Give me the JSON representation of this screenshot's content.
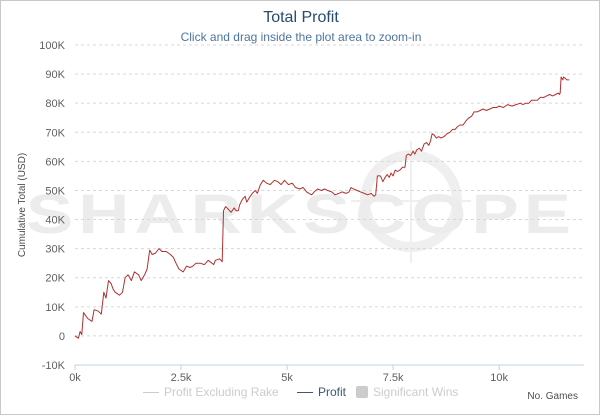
{
  "chart_data": {
    "type": "line",
    "title": "Total Profit",
    "subtitle": "Click and drag inside the plot area to zoom-in",
    "xlabel": "No. Games",
    "ylabel": "Cumulative Total (USD)",
    "xlim": [
      0,
      12000
    ],
    "ylim": [
      -10000,
      100000
    ],
    "x_ticks": [
      0,
      2500,
      5000,
      7500,
      10000
    ],
    "x_tick_labels": [
      "0k",
      "2.5k",
      "5k",
      "7.5k",
      "10k"
    ],
    "y_ticks": [
      -10000,
      0,
      10000,
      20000,
      30000,
      40000,
      50000,
      60000,
      70000,
      80000,
      90000,
      100000
    ],
    "y_tick_labels": [
      "-10K",
      "0",
      "10K",
      "20K",
      "30K",
      "40K",
      "50K",
      "60K",
      "70K",
      "80K",
      "90K",
      "100K"
    ],
    "grid": "horizontal dashed",
    "legend_position": "bottom-center",
    "watermark": "SHARKSCOPE",
    "series": [
      {
        "name": "Profit",
        "color": "#b03030",
        "visible": true,
        "points": [
          [
            0,
            0
          ],
          [
            80,
            -800
          ],
          [
            120,
            1500
          ],
          [
            160,
            500
          ],
          [
            200,
            8000
          ],
          [
            300,
            6000
          ],
          [
            400,
            5000
          ],
          [
            450,
            9000
          ],
          [
            550,
            8500
          ],
          [
            620,
            7500
          ],
          [
            680,
            15000
          ],
          [
            730,
            13000
          ],
          [
            790,
            19000
          ],
          [
            850,
            18000
          ],
          [
            900,
            16000
          ],
          [
            950,
            15000
          ],
          [
            1050,
            14000
          ],
          [
            1120,
            15000
          ],
          [
            1180,
            20000
          ],
          [
            1250,
            21000
          ],
          [
            1330,
            19000
          ],
          [
            1400,
            22000
          ],
          [
            1500,
            21000
          ],
          [
            1560,
            19000
          ],
          [
            1640,
            21000
          ],
          [
            1700,
            23000
          ],
          [
            1760,
            29500
          ],
          [
            1820,
            28000
          ],
          [
            1900,
            28500
          ],
          [
            1980,
            30000
          ],
          [
            2050,
            29000
          ],
          [
            2150,
            29000
          ],
          [
            2250,
            28000
          ],
          [
            2320,
            27000
          ],
          [
            2380,
            25000
          ],
          [
            2450,
            23000
          ],
          [
            2550,
            22000
          ],
          [
            2630,
            24000
          ],
          [
            2710,
            23500
          ],
          [
            2780,
            24000
          ],
          [
            2850,
            25000
          ],
          [
            2950,
            25000
          ],
          [
            3050,
            24500
          ],
          [
            3140,
            26000
          ],
          [
            3270,
            24500
          ],
          [
            3310,
            26000
          ],
          [
            3410,
            26500
          ],
          [
            3470,
            25500
          ],
          [
            3500,
            43000
          ],
          [
            3550,
            44500
          ],
          [
            3620,
            43500
          ],
          [
            3680,
            42500
          ],
          [
            3750,
            44000
          ],
          [
            3800,
            43000
          ],
          [
            3850,
            43000
          ],
          [
            3880,
            45000
          ],
          [
            3950,
            47000
          ],
          [
            4010,
            48000
          ],
          [
            4050,
            46000
          ],
          [
            4110,
            47500
          ],
          [
            4180,
            49000
          ],
          [
            4250,
            50000
          ],
          [
            4300,
            49000
          ],
          [
            4370,
            52000
          ],
          [
            4440,
            53500
          ],
          [
            4520,
            52500
          ],
          [
            4600,
            52000
          ],
          [
            4700,
            53500
          ],
          [
            4780,
            53000
          ],
          [
            4860,
            52000
          ],
          [
            4940,
            53500
          ],
          [
            5030,
            52000
          ],
          [
            5120,
            52500
          ],
          [
            5200,
            51000
          ],
          [
            5300,
            50500
          ],
          [
            5380,
            51000
          ],
          [
            5460,
            49500
          ],
          [
            5520,
            49000
          ],
          [
            5580,
            48500
          ],
          [
            5640,
            49500
          ],
          [
            5720,
            50500
          ],
          [
            5810,
            50000
          ],
          [
            5880,
            50500
          ],
          [
            5960,
            50000
          ],
          [
            6050,
            49500
          ],
          [
            6130,
            48500
          ],
          [
            6220,
            49000
          ],
          [
            6300,
            49500
          ],
          [
            6390,
            49000
          ],
          [
            6460,
            49500
          ],
          [
            6510,
            51000
          ],
          [
            6570,
            50500
          ],
          [
            6650,
            50000
          ],
          [
            6730,
            49500
          ],
          [
            6820,
            49000
          ],
          [
            6900,
            48500
          ],
          [
            6980,
            49000
          ],
          [
            7050,
            48000
          ],
          [
            7090,
            48500
          ],
          [
            7130,
            55000
          ],
          [
            7200,
            55000
          ],
          [
            7260,
            53000
          ],
          [
            7310,
            54500
          ],
          [
            7360,
            55500
          ],
          [
            7410,
            54500
          ],
          [
            7450,
            56000
          ],
          [
            7500,
            55000
          ],
          [
            7550,
            57000
          ],
          [
            7600,
            56500
          ],
          [
            7660,
            57000
          ],
          [
            7720,
            58000
          ],
          [
            7780,
            58000
          ],
          [
            7810,
            62000
          ],
          [
            7860,
            62500
          ],
          [
            7910,
            62000
          ],
          [
            7970,
            63500
          ],
          [
            8010,
            62500
          ],
          [
            8060,
            64000
          ],
          [
            8120,
            64500
          ],
          [
            8170,
            63500
          ],
          [
            8230,
            66000
          ],
          [
            8290,
            66500
          ],
          [
            8340,
            65500
          ],
          [
            8380,
            67000
          ],
          [
            8420,
            69500
          ],
          [
            8470,
            69000
          ],
          [
            8520,
            68000
          ],
          [
            8570,
            68500
          ],
          [
            8630,
            68000
          ],
          [
            8700,
            68500
          ],
          [
            8770,
            69500
          ],
          [
            8840,
            70000
          ],
          [
            8900,
            71000
          ],
          [
            8960,
            71000
          ],
          [
            9020,
            72000
          ],
          [
            9080,
            72500
          ],
          [
            9150,
            72500
          ],
          [
            9220,
            74000
          ],
          [
            9290,
            75000
          ],
          [
            9350,
            75500
          ],
          [
            9410,
            77000
          ],
          [
            9480,
            77000
          ],
          [
            9550,
            77500
          ],
          [
            9620,
            78000
          ],
          [
            9700,
            77500
          ],
          [
            9780,
            78000
          ],
          [
            9860,
            78500
          ],
          [
            9940,
            78500
          ],
          [
            10000,
            79000
          ],
          [
            10100,
            78500
          ],
          [
            10200,
            79500
          ],
          [
            10300,
            79000
          ],
          [
            10400,
            79500
          ],
          [
            10500,
            80000
          ],
          [
            10560,
            79500
          ],
          [
            10630,
            80000
          ],
          [
            10700,
            80000
          ],
          [
            10760,
            81000
          ],
          [
            10830,
            81000
          ],
          [
            10900,
            81000
          ],
          [
            10970,
            82000
          ],
          [
            11050,
            82000
          ],
          [
            11120,
            82500
          ],
          [
            11190,
            83000
          ],
          [
            11260,
            82500
          ],
          [
            11330,
            83000
          ],
          [
            11400,
            83500
          ],
          [
            11420,
            83000
          ],
          [
            11440,
            83500
          ],
          [
            11460,
            89000
          ],
          [
            11500,
            88000
          ],
          [
            11520,
            89000
          ],
          [
            11560,
            88500
          ],
          [
            11600,
            88000
          ],
          [
            11650,
            88000
          ]
        ]
      },
      {
        "name": "Profit Excluding Rake",
        "color": "#cccccc",
        "visible": false,
        "points": []
      }
    ],
    "legend": {
      "items": [
        {
          "label": "Profit Excluding Rake",
          "symbol": "line",
          "color": "#cccccc",
          "active": false
        },
        {
          "label": "Profit",
          "symbol": "line",
          "color": "#b03030",
          "active": true
        },
        {
          "label": "Significant Wins",
          "symbol": "box",
          "color": "#cccccc",
          "active": false
        }
      ]
    }
  }
}
